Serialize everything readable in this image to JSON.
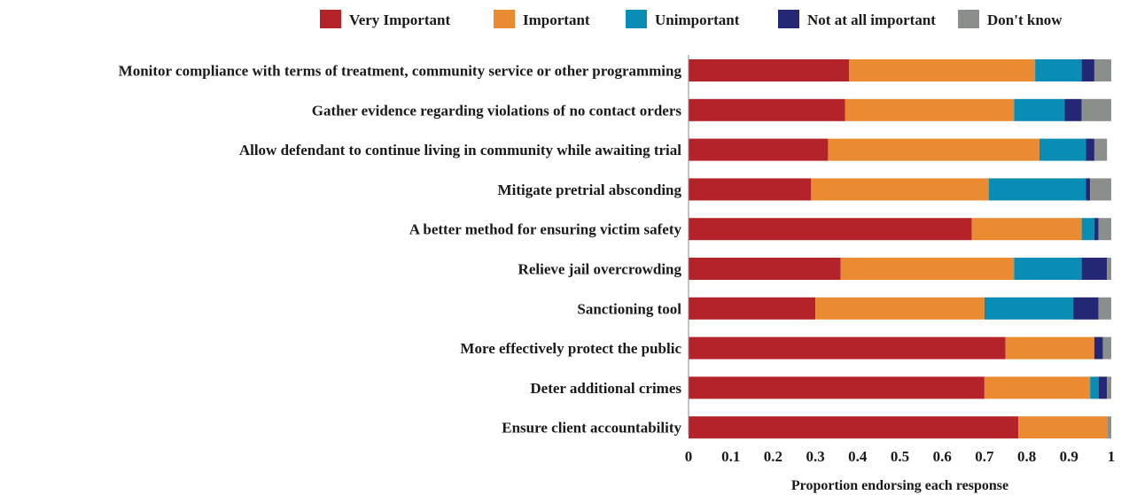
{
  "chart_data": {
    "type": "bar",
    "orientation": "horizontal",
    "stacked": true,
    "title": "",
    "xlabel": "Proportion endorsing each response",
    "ylabel": "",
    "xlim": [
      0,
      1
    ],
    "xticks": [
      "0",
      "0.1",
      "0.2",
      "0.3",
      "0.4",
      "0.5",
      "0.6",
      "0.7",
      "0.8",
      "0.9",
      "1"
    ],
    "grid": false,
    "legend_position": "top",
    "categories": [
      "Monitor compliance with terms of treatment, community service or other programming",
      "Gather evidence regarding violations of no contact orders",
      "Allow defendant to continue living in community while awaiting trial",
      "Mitigate pretrial absconding",
      "A better method for ensuring victim safety",
      "Relieve jail overcrowding",
      "Sanctioning tool",
      "More effectively protect the public",
      "Deter additional crimes",
      "Ensure client accountability"
    ],
    "series": [
      {
        "name": "Very Important",
        "color": "#b5232a",
        "values": [
          0.38,
          0.37,
          0.33,
          0.29,
          0.67,
          0.36,
          0.3,
          0.75,
          0.7,
          0.78
        ]
      },
      {
        "name": "Important",
        "color": "#eb8b31",
        "values": [
          0.44,
          0.4,
          0.5,
          0.42,
          0.26,
          0.41,
          0.4,
          0.21,
          0.25,
          0.21
        ]
      },
      {
        "name": "Unimportant",
        "color": "#0a8db5",
        "values": [
          0.11,
          0.12,
          0.11,
          0.23,
          0.03,
          0.16,
          0.21,
          0.0,
          0.02,
          0.0
        ]
      },
      {
        "name": "Not at all important",
        "color": "#242874",
        "values": [
          0.03,
          0.04,
          0.02,
          0.01,
          0.01,
          0.06,
          0.06,
          0.02,
          0.02,
          0.0
        ]
      },
      {
        "name": "Don't know",
        "color": "#8b8f8c",
        "values": [
          0.04,
          0.07,
          0.03,
          0.05,
          0.03,
          0.01,
          0.03,
          0.02,
          0.01,
          0.01
        ]
      }
    ]
  }
}
